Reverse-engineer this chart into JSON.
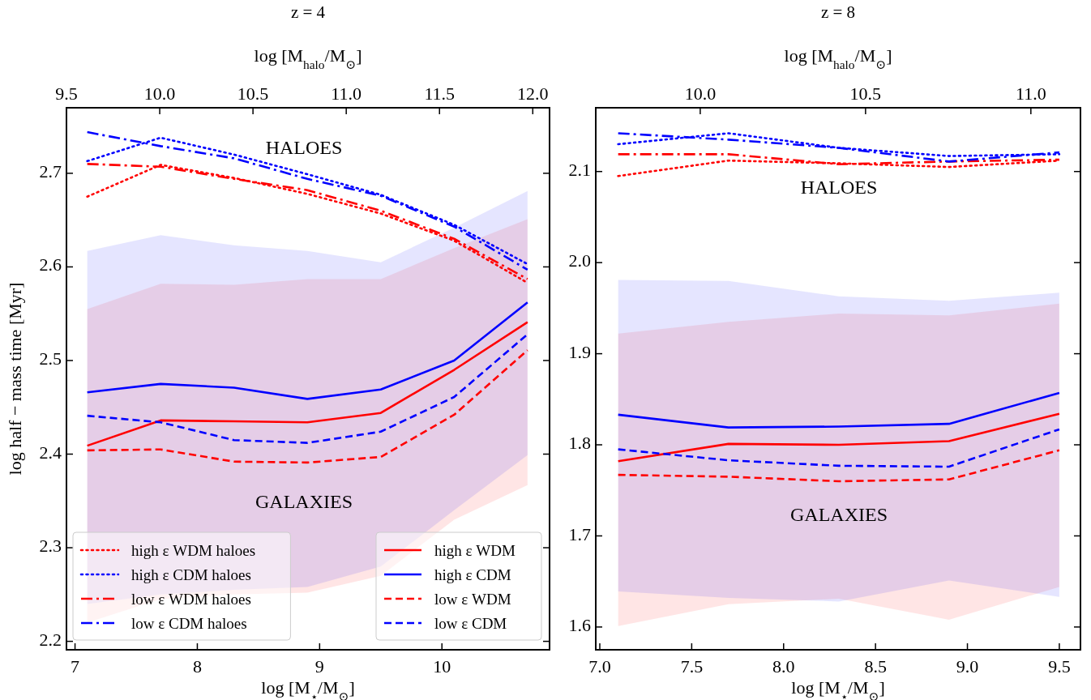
{
  "chart_data": [
    {
      "type": "line",
      "title": "z = 4",
      "xlabel": "log [M$_{⋆}$/M$_{⊙}$]",
      "x2label": "log [M$_{halo}$/M$_{⊙}$]",
      "ylabel": "log half − mass time [Myr]",
      "x": [
        7.1,
        7.7,
        8.3,
        8.9,
        9.5,
        10.1,
        10.7
      ],
      "xlim": [
        6.93,
        10.88
      ],
      "xticks": [
        7,
        8,
        9,
        10
      ],
      "x2lim": [
        9.5,
        12.09
      ],
      "x2ticks": [
        9.5,
        {
          "value": 10,
          "label": "10.0"
        },
        10.5,
        {
          "value": 11,
          "label": "11.0"
        },
        11.5,
        {
          "value": 12,
          "label": "12.0"
        }
      ],
      "ylim": [
        2.191,
        2.77
      ],
      "yticks": [
        2.2,
        2.3,
        2.4,
        2.5,
        2.6,
        2.7
      ],
      "legend": "bottom",
      "annotations": [
        "HALOES",
        "GALAXIES"
      ],
      "series": [
        {
          "name": "high ε WDM haloes",
          "color": "#ff0000",
          "line_style": "dotted",
          "values": [
            2.675,
            2.709,
            2.695,
            2.678,
            2.657,
            2.628,
            2.583
          ]
        },
        {
          "name": "high ε CDM haloes",
          "color": "#0000ff",
          "line_style": "dotted",
          "values": [
            2.713,
            2.738,
            2.72,
            2.699,
            2.677,
            2.645,
            2.603
          ]
        },
        {
          "name": "low ε WDM haloes",
          "color": "#ff0000",
          "line_style": "dashdot",
          "values": [
            2.71,
            2.707,
            2.694,
            2.682,
            2.66,
            2.63,
            2.587
          ]
        },
        {
          "name": "low ε CDM haloes",
          "color": "#0000ff",
          "line_style": "dashdot",
          "values": [
            2.744,
            2.729,
            2.716,
            2.694,
            2.676,
            2.643,
            2.597
          ]
        },
        {
          "name": "high ε WDM",
          "color": "#ff0000",
          "line_style": "solid",
          "values": [
            2.409,
            2.436,
            2.435,
            2.434,
            2.444,
            2.49,
            2.541
          ],
          "lower": [
            2.22,
            2.245,
            2.25,
            2.252,
            2.27,
            2.33,
            2.367
          ],
          "upper": [
            2.555,
            2.582,
            2.581,
            2.587,
            2.587,
            2.62,
            2.651
          ]
        },
        {
          "name": "high ε CDM",
          "color": "#0000ff",
          "line_style": "solid",
          "values": [
            2.466,
            2.475,
            2.471,
            2.459,
            2.469,
            2.5,
            2.562
          ],
          "lower": [
            2.24,
            2.25,
            2.255,
            2.258,
            2.28,
            2.34,
            2.399
          ],
          "upper": [
            2.617,
            2.634,
            2.623,
            2.617,
            2.605,
            2.642,
            2.681
          ]
        },
        {
          "name": "low ε WDM",
          "color": "#ff0000",
          "line_style": "dashed",
          "values": [
            2.404,
            2.405,
            2.392,
            2.391,
            2.397,
            2.442,
            2.511
          ]
        },
        {
          "name": "low ε CDM",
          "color": "#0000ff",
          "line_style": "dashed",
          "values": [
            2.441,
            2.434,
            2.415,
            2.412,
            2.424,
            2.461,
            2.528
          ]
        }
      ]
    },
    {
      "type": "line",
      "title": "z = 8",
      "xlabel": "log [M$_{⋆}$/M$_{⊙}$]",
      "x2label": "log [M$_{halo}$/M$_{⊙}$]",
      "x": [
        7.1,
        7.7,
        8.3,
        8.9,
        9.5
      ],
      "xlim": [
        6.978,
        9.615
      ],
      "xticks": [
        {
          "value": 7,
          "label": "7.0"
        },
        7.5,
        {
          "value": 8,
          "label": "8.0"
        },
        8.5,
        {
          "value": 9,
          "label": "9.0"
        },
        9.5
      ],
      "x2lim": [
        9.684,
        11.15
      ],
      "x2ticks": [
        {
          "value": 10,
          "label": "10.0"
        },
        10.5,
        {
          "value": 11,
          "label": "11.0"
        }
      ],
      "ylim": [
        1.575,
        2.17
      ],
      "yticks": [
        1.6,
        1.7,
        1.8,
        1.9,
        {
          "value": 2,
          "label": "2.0"
        },
        2.1
      ],
      "annotations": [
        "HALOES",
        "GALAXIES"
      ],
      "series": [
        {
          "color": "#ff0000",
          "line_style": "dotted",
          "values": [
            2.095,
            2.112,
            2.109,
            2.105,
            2.112
          ]
        },
        {
          "color": "#0000ff",
          "line_style": "dotted",
          "values": [
            2.13,
            2.142,
            2.126,
            2.117,
            2.119
          ]
        },
        {
          "color": "#ff0000",
          "line_style": "dashdot",
          "values": [
            2.119,
            2.119,
            2.108,
            2.111,
            2.113
          ]
        },
        {
          "color": "#0000ff",
          "line_style": "dashdot",
          "values": [
            2.142,
            2.135,
            2.126,
            2.111,
            2.121
          ]
        },
        {
          "color": "#ff0000",
          "line_style": "solid",
          "values": [
            1.782,
            1.801,
            1.8,
            1.804,
            1.834
          ],
          "lower": [
            1.601,
            1.625,
            1.631,
            1.608,
            1.644
          ],
          "upper": [
            1.922,
            1.935,
            1.944,
            1.942,
            1.955
          ]
        },
        {
          "color": "#0000ff",
          "line_style": "solid",
          "values": [
            1.833,
            1.819,
            1.82,
            1.823,
            1.857
          ],
          "lower": [
            1.639,
            1.632,
            1.628,
            1.651,
            1.633
          ],
          "upper": [
            1.981,
            1.98,
            1.963,
            1.958,
            1.967
          ]
        },
        {
          "color": "#ff0000",
          "line_style": "dashed",
          "values": [
            1.767,
            1.765,
            1.76,
            1.762,
            1.794
          ]
        },
        {
          "color": "#0000ff",
          "line_style": "dashed",
          "values": [
            1.795,
            1.783,
            1.777,
            1.776,
            1.817
          ]
        }
      ]
    }
  ]
}
